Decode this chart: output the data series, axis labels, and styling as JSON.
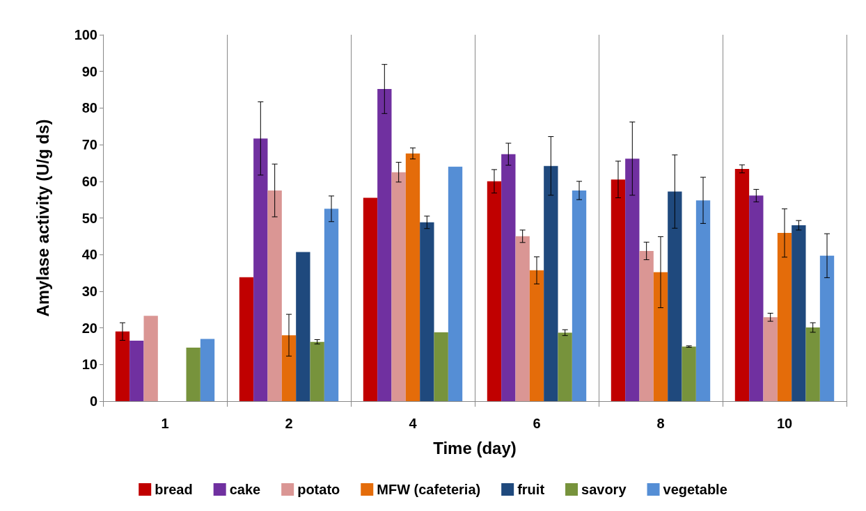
{
  "chart_data": {
    "type": "bar",
    "xlabel": "Time (day)",
    "ylabel": "Amylase activity (U/g ds)",
    "categories": [
      "1",
      "2",
      "4",
      "6",
      "8",
      "10"
    ],
    "series": [
      {
        "name": "bread",
        "color": "#c00000",
        "values": [
          19,
          33.8,
          55.5,
          60,
          60.5,
          63.4
        ],
        "errors": [
          2.4,
          null,
          null,
          3.2,
          5,
          1.1
        ]
      },
      {
        "name": "cake",
        "color": "#7030a0",
        "values": [
          16.5,
          71.7,
          85.2,
          67.4,
          66.2,
          56.1
        ],
        "errors": [
          null,
          10,
          6.7,
          3,
          10,
          1.7
        ]
      },
      {
        "name": "potato",
        "color": "#da9694",
        "values": [
          23.3,
          57.5,
          62.5,
          45,
          41,
          22.9
        ],
        "errors": [
          null,
          7.2,
          2.7,
          1.7,
          2.4,
          1.1
        ]
      },
      {
        "name": "MFW (cafeteria)",
        "color": "#e46c0a",
        "values": [
          null,
          18,
          67.6,
          35.7,
          35.2,
          45.9
        ],
        "errors": [
          null,
          5.7,
          1.5,
          3.7,
          9.7,
          6.6
        ]
      },
      {
        "name": "fruit",
        "color": "#1f497d",
        "values": [
          null,
          40.7,
          48.8,
          64.2,
          57.2,
          48
        ],
        "errors": [
          null,
          null,
          1.7,
          8,
          10,
          1.3
        ]
      },
      {
        "name": "savory",
        "color": "#77933c",
        "values": [
          14.6,
          16.2,
          18.8,
          18.7,
          14.9,
          20.1
        ],
        "errors": [
          null,
          0.6,
          null,
          0.8,
          0.2,
          1.3
        ]
      },
      {
        "name": "vegetable",
        "color": "#558ed5",
        "values": [
          17,
          52.5,
          64,
          57.5,
          54.8,
          39.7
        ],
        "errors": [
          null,
          3.5,
          null,
          2.5,
          6.3,
          6
        ]
      }
    ],
    "ylim": [
      0,
      100
    ],
    "yticks": [
      0,
      10,
      20,
      30,
      40,
      50,
      60,
      70,
      80,
      90,
      100
    ],
    "grid": "x",
    "legend": "bottom"
  }
}
